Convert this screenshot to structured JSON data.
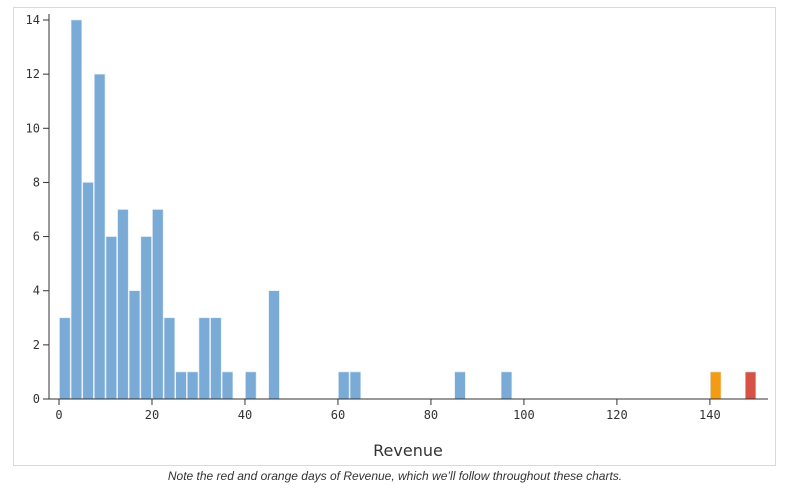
{
  "chart_data": {
    "type": "bar",
    "xlabel": "Revenue",
    "ylabel": "",
    "xlim": [
      0,
      152.5
    ],
    "ylim": [
      0,
      14
    ],
    "xticks": [
      0,
      20,
      40,
      60,
      80,
      100,
      120,
      140
    ],
    "yticks": [
      0,
      2,
      4,
      6,
      8,
      10,
      12,
      14
    ],
    "grid": false,
    "bin_width": 2.5,
    "bins": [
      {
        "x0": 0,
        "count": 3
      },
      {
        "x0": 2.5,
        "count": 14
      },
      {
        "x0": 5,
        "count": 8
      },
      {
        "x0": 7.5,
        "count": 12
      },
      {
        "x0": 10,
        "count": 6
      },
      {
        "x0": 12.5,
        "count": 7
      },
      {
        "x0": 15,
        "count": 4
      },
      {
        "x0": 17.5,
        "count": 6
      },
      {
        "x0": 20,
        "count": 7
      },
      {
        "x0": 22.5,
        "count": 3
      },
      {
        "x0": 25,
        "count": 1
      },
      {
        "x0": 27.5,
        "count": 1
      },
      {
        "x0": 30,
        "count": 3
      },
      {
        "x0": 32.5,
        "count": 3
      },
      {
        "x0": 35,
        "count": 1
      },
      {
        "x0": 40,
        "count": 1
      },
      {
        "x0": 45,
        "count": 4
      },
      {
        "x0": 60,
        "count": 1
      },
      {
        "x0": 62.5,
        "count": 1
      },
      {
        "x0": 85,
        "count": 1
      },
      {
        "x0": 95,
        "count": 1
      },
      {
        "x0": 140,
        "count": 1,
        "highlight": "orange"
      },
      {
        "x0": 147.5,
        "count": 1,
        "highlight": "red"
      }
    ],
    "colors": {
      "default": "#7aabd6",
      "orange": "#f39c12",
      "red": "#d65245"
    }
  },
  "caption": "Note the red and orange days of Revenue, which we’ll follow throughout these charts."
}
